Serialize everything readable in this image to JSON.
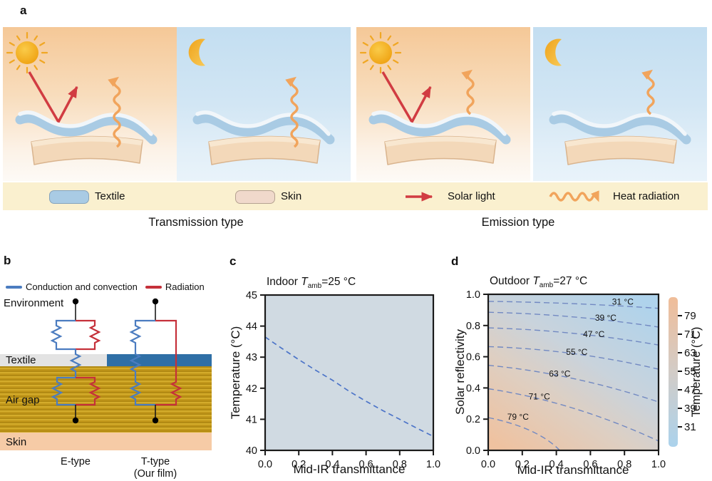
{
  "panel_labels": {
    "a": "a",
    "b": "b",
    "c": "c",
    "d": "d"
  },
  "colors": {
    "textile_blue": "#A9CBE4",
    "skin_tan": "#F3D8B9",
    "solar_red": "#D13C42",
    "heat_orange": "#F1A45C",
    "film_blue": "#2F6FA6",
    "airgap_gold": "#C79B1C",
    "cond_blue": "#4B7CC0",
    "rad_red": "#C5303A",
    "legend_cream": "#FAF0CF",
    "plot_bg_c": "#D0DAE2",
    "curve_blue": "#4C74C8"
  },
  "panel_a": {
    "scenes": [
      {
        "sky": "sun",
        "mode": "transmission"
      },
      {
        "sky": "moon",
        "mode": "transmission"
      },
      {
        "sky": "sun",
        "mode": "emission"
      },
      {
        "sky": "moon",
        "mode": "emission"
      }
    ],
    "legend": {
      "textile": "Textile",
      "skin": "Skin",
      "solar": "Solar light",
      "heat": "Heat radiation"
    },
    "captions": {
      "transmission": "Transmission type",
      "emission": "Emission type"
    }
  },
  "panel_b": {
    "legend": [
      {
        "label": "Conduction and convection",
        "color": "#4B7CC0"
      },
      {
        "label": "Radiation",
        "color": "#C5303A"
      }
    ],
    "labels": {
      "environment": "Environment",
      "textile": "Textile",
      "air_gap": "Air gap",
      "skin": "Skin",
      "e_type": "E-type",
      "t_type": "T-type",
      "our_film": "(Our film)"
    }
  },
  "panel_c": {
    "title": {
      "prefix": "Indoor ",
      "symbol": "T",
      "subscript": "amb",
      "suffix": "=25 °C"
    },
    "chart_data": {
      "type": "line",
      "title": "Indoor T_amb=25 °C",
      "xlabel": "Mid-IR transmittance",
      "ylabel": "Temperature (°C)",
      "xlim": [
        0,
        1
      ],
      "ylim": [
        40,
        45
      ],
      "line_style": "dashed",
      "line_color": "#4C74C8",
      "bg_color": "#D0DAE2",
      "x": [
        0,
        0.1,
        0.2,
        0.3,
        0.4,
        0.5,
        0.6,
        0.7,
        0.8,
        0.9,
        1.0
      ],
      "y": [
        43.65,
        43.28,
        42.92,
        42.58,
        42.26,
        41.9,
        41.58,
        41.28,
        41.0,
        40.72,
        40.45
      ],
      "x_ticks": [
        {
          "v": 0,
          "label": "0.0"
        },
        {
          "v": 0.2,
          "label": "0.2"
        },
        {
          "v": 0.4,
          "label": "0.4"
        },
        {
          "v": 0.6,
          "label": "0.6"
        },
        {
          "v": 0.8,
          "label": "0.8"
        },
        {
          "v": 1,
          "label": "1.0"
        }
      ],
      "y_ticks": [
        {
          "v": 45,
          "label": "45"
        },
        {
          "v": 44,
          "label": "44"
        },
        {
          "v": 43,
          "label": "43"
        },
        {
          "v": 42,
          "label": "42"
        },
        {
          "v": 41,
          "label": "41"
        },
        {
          "v": 40,
          "label": "40"
        }
      ]
    }
  },
  "panel_d": {
    "title": {
      "prefix": "Outdoor ",
      "symbol": "T",
      "subscript": "amb",
      "suffix": "=27 °C"
    },
    "chart_data": {
      "type": "contour",
      "title": "Outdoor T_amb=27 °C",
      "xlabel": "Mid-IR transmittance",
      "ylabel": "Solar reflectivity",
      "xlim": [
        0,
        1
      ],
      "ylim": [
        0,
        1
      ],
      "fill_gradient": [
        "#AFD3EC",
        "#C9D3DC",
        "#DECFC2",
        "#EFC2A0"
      ],
      "contour_color": "#7289C2",
      "x_ticks": [
        {
          "v": 0,
          "label": "0.0"
        },
        {
          "v": 0.2,
          "label": "0.2"
        },
        {
          "v": 0.4,
          "label": "0.4"
        },
        {
          "v": 0.6,
          "label": "0.6"
        },
        {
          "v": 0.8,
          "label": "0.8"
        },
        {
          "v": 1,
          "label": "1.0"
        }
      ],
      "y_ticks": [
        {
          "v": 1,
          "label": "1.0"
        },
        {
          "v": 0.8,
          "label": "0.8"
        },
        {
          "v": 0.6,
          "label": "0.6"
        },
        {
          "v": 0.4,
          "label": "0.4"
        },
        {
          "v": 0.2,
          "label": "0.2"
        },
        {
          "v": 0,
          "label": "0.0"
        }
      ],
      "contours": [
        {
          "value": 31,
          "label": "31 °C",
          "points": [
            [
              0,
              0.955
            ],
            [
              0.5,
              0.94
            ],
            [
              1,
              0.91
            ]
          ],
          "label_pos": [
            0.79,
            0.952
          ]
        },
        {
          "value": 39,
          "label": "39 °C",
          "points": [
            [
              0,
              0.885
            ],
            [
              0.5,
              0.855
            ],
            [
              1,
              0.79
            ]
          ],
          "label_pos": [
            0.69,
            0.85
          ]
        },
        {
          "value": 47,
          "label": "47 °C",
          "points": [
            [
              0,
              0.785
            ],
            [
              0.5,
              0.75
            ],
            [
              1,
              0.675
            ]
          ],
          "label_pos": [
            0.62,
            0.745
          ]
        },
        {
          "value": 55,
          "label": "55 °C",
          "points": [
            [
              0,
              0.665
            ],
            [
              0.5,
              0.62
            ],
            [
              1,
              0.52
            ]
          ],
          "label_pos": [
            0.52,
            0.63
          ]
        },
        {
          "value": 63,
          "label": "63 °C",
          "points": [
            [
              0,
              0.545
            ],
            [
              0.5,
              0.46
            ],
            [
              1,
              0.31
            ]
          ],
          "label_pos": [
            0.42,
            0.49
          ]
        },
        {
          "value": 71,
          "label": "71 °C",
          "points": [
            [
              0,
              0.395
            ],
            [
              0.5,
              0.27
            ],
            [
              1,
              0.06
            ]
          ],
          "label_pos": [
            0.3,
            0.345
          ]
        },
        {
          "value": 79,
          "label": "79 °C",
          "points": [
            [
              0,
              0.21
            ],
            [
              0.25,
              0.125
            ],
            [
              0.42,
              0
            ]
          ],
          "label_pos": [
            0.175,
            0.215
          ]
        }
      ]
    },
    "colorbar": {
      "ticks": [
        79,
        71,
        63,
        55,
        47,
        39,
        31
      ],
      "label": "Temperature (°C)"
    }
  }
}
